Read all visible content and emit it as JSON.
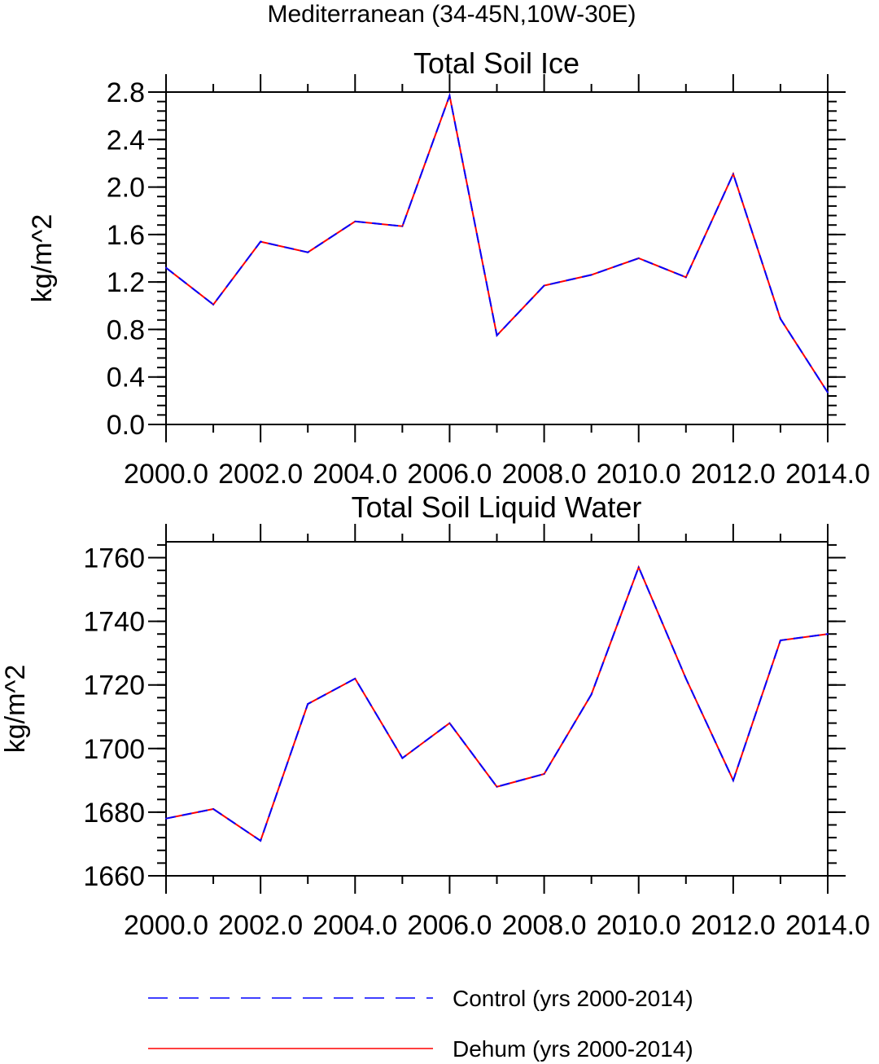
{
  "main_title": "Mediterranean (34-45N,10W-30E)",
  "colors": {
    "control": "#0000ff",
    "dehum": "#ff0000",
    "axis": "#000000"
  },
  "legend": [
    {
      "label": "Control (yrs 2000-2014)",
      "color": "#0000ff",
      "style": "dashed"
    },
    {
      "label": "Dehum (yrs 2000-2014)",
      "color": "#ff0000",
      "style": "solid"
    }
  ],
  "chart_data": [
    {
      "type": "line",
      "title": "Total Soil Ice",
      "xlabel": "",
      "ylabel": "kg/m^2",
      "xlim": [
        2000,
        2014
      ],
      "ylim": [
        0.0,
        2.8
      ],
      "x": [
        2000,
        2001,
        2002,
        2003,
        2004,
        2005,
        2006,
        2007,
        2008,
        2009,
        2010,
        2011,
        2012,
        2013,
        2014
      ],
      "x_ticks": [
        2000,
        2002,
        2004,
        2006,
        2008,
        2010,
        2012,
        2014
      ],
      "x_tick_labels": [
        "2000.0",
        "2002.0",
        "2004.0",
        "2006.0",
        "2008.0",
        "2010.0",
        "2012.0",
        "2014.0"
      ],
      "y_ticks": [
        0.0,
        0.4,
        0.8,
        1.2,
        1.6,
        2.0,
        2.4,
        2.8
      ],
      "y_tick_labels": [
        "0.0",
        "0.4",
        "0.8",
        "1.2",
        "1.6",
        "2.0",
        "2.4",
        "2.8"
      ],
      "y_minor_step": 0.08,
      "series": [
        {
          "name": "Control (yrs 2000-2014)",
          "color": "#0000ff",
          "dash": true,
          "values": [
            1.32,
            1.01,
            1.54,
            1.45,
            1.71,
            1.67,
            2.77,
            0.75,
            1.17,
            1.26,
            1.4,
            1.24,
            2.11,
            0.89,
            0.27
          ]
        },
        {
          "name": "Dehum (yrs 2000-2014)",
          "color": "#ff0000",
          "dash": false,
          "values": [
            1.32,
            1.01,
            1.54,
            1.45,
            1.71,
            1.67,
            2.77,
            0.75,
            1.17,
            1.26,
            1.4,
            1.24,
            2.11,
            0.89,
            0.27
          ]
        }
      ]
    },
    {
      "type": "line",
      "title": "Total Soil Liquid Water",
      "xlabel": "",
      "ylabel": "kg/m^2",
      "xlim": [
        2000,
        2014
      ],
      "ylim": [
        1660,
        1765
      ],
      "x": [
        2000,
        2001,
        2002,
        2003,
        2004,
        2005,
        2006,
        2007,
        2008,
        2009,
        2010,
        2011,
        2012,
        2013,
        2014
      ],
      "x_ticks": [
        2000,
        2002,
        2004,
        2006,
        2008,
        2010,
        2012,
        2014
      ],
      "x_tick_labels": [
        "2000.0",
        "2002.0",
        "2004.0",
        "2006.0",
        "2008.0",
        "2010.0",
        "2012.0",
        "2014.0"
      ],
      "y_ticks": [
        1660,
        1680,
        1700,
        1720,
        1740,
        1760
      ],
      "y_tick_labels": [
        "1660",
        "1680",
        "1700",
        "1720",
        "1740",
        "1760"
      ],
      "y_minor_step": 4,
      "series": [
        {
          "name": "Control (yrs 2000-2014)",
          "color": "#0000ff",
          "dash": true,
          "values": [
            1678,
            1681,
            1671,
            1714,
            1722,
            1697,
            1708,
            1688,
            1692,
            1717,
            1757,
            1722,
            1690,
            1734,
            1736
          ]
        },
        {
          "name": "Dehum (yrs 2000-2014)",
          "color": "#ff0000",
          "dash": false,
          "values": [
            1678,
            1681,
            1671,
            1714,
            1722,
            1697,
            1708,
            1688,
            1692,
            1717,
            1757,
            1722,
            1690,
            1734,
            1736
          ]
        }
      ]
    }
  ]
}
